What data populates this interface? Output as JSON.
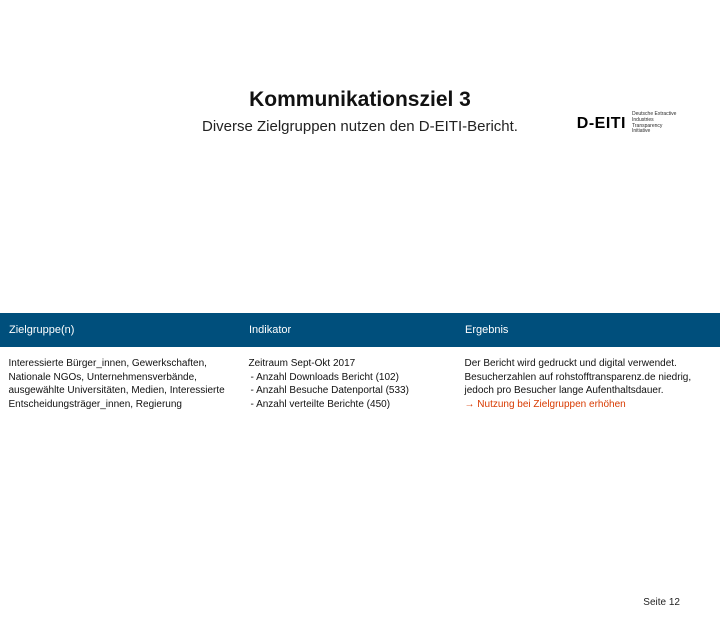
{
  "logo": {
    "brand": "D-EITI",
    "tagline": "Deutsche Extractive Industries Transparency Initiative"
  },
  "heading": {
    "title": "Kommunikationsziel 3",
    "subtitle": "Diverse Zielgruppen nutzen den D-EITI-Bericht."
  },
  "colors": {
    "header_bg": "#004f7c",
    "header_text": "#ffffff",
    "accent": "#d83a00"
  },
  "table": {
    "headers": [
      "Zielgruppe(n)",
      "Indikator",
      "Ergebnis"
    ],
    "row": {
      "zielgruppe": "Interessierte Bürger_innen, Gewerkschaften, Nationale NGOs, Unternehmensverbände, ausgewählte Universitäten, Medien, Interessierte Entscheidungsträger_innen, Regierung",
      "indikator_title": "Zeitraum Sept-Okt 2017",
      "indikator_items": [
        "Anzahl Downloads Bericht (102)",
        "Anzahl Besuche Datenportal (533)",
        "Anzahl verteilte Berichte (450)"
      ],
      "ergebnis_body": "Der Bericht wird gedruckt und digital verwendet. Besucherzahlen auf rohstofftransparenz.de niedrig, jedoch pro Besucher lange Aufenthaltsdauer.",
      "ergebnis_action_arrow": "→",
      "ergebnis_action": "Nutzung bei Zielgruppen erhöhen"
    }
  },
  "footer": {
    "page": "Seite 12"
  }
}
